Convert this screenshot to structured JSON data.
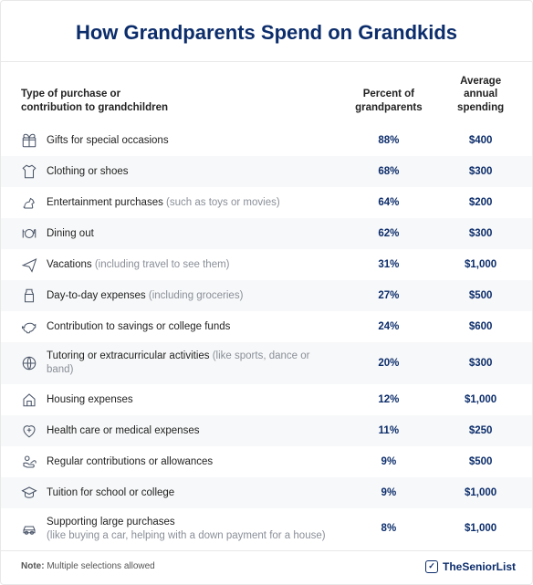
{
  "title": "How Grandparents Spend on Grandkids",
  "columns": {
    "label": "Type of purchase or\ncontribution to grandchildren",
    "pct": "Percent of\ngrandparents",
    "amt": "Average annual\nspending"
  },
  "rows": [
    {
      "icon": "gift",
      "label": "Gifts for special occasions",
      "sub": "",
      "pct": "88%",
      "amt": "$400"
    },
    {
      "icon": "shirt",
      "label": "Clothing or shoes",
      "sub": "",
      "pct": "68%",
      "amt": "$300"
    },
    {
      "icon": "horse",
      "label": "Entertainment purchases",
      "sub": " (such as toys or movies)",
      "pct": "64%",
      "amt": "$200"
    },
    {
      "icon": "dining",
      "label": "Dining out",
      "sub": "",
      "pct": "62%",
      "amt": "$300"
    },
    {
      "icon": "plane",
      "label": "Vacations",
      "sub": " (including travel to see them)",
      "pct": "31%",
      "amt": "$1,000"
    },
    {
      "icon": "milk",
      "label": "Day-to-day expenses",
      "sub": " (including groceries)",
      "pct": "27%",
      "amt": "$500"
    },
    {
      "icon": "piggy",
      "label": "Contribution to savings or college funds",
      "sub": "",
      "pct": "24%",
      "amt": "$600"
    },
    {
      "icon": "ball",
      "label": "Tutoring or extracurricular activities",
      "sub": " (like sports, dance or band)",
      "pct": "20%",
      "amt": "$300"
    },
    {
      "icon": "house",
      "label": "Housing expenses",
      "sub": "",
      "pct": "12%",
      "amt": "$1,000"
    },
    {
      "icon": "health",
      "label": "Health care or medical expenses",
      "sub": "",
      "pct": "11%",
      "amt": "$250"
    },
    {
      "icon": "hand",
      "label": "Regular contributions or allowances",
      "sub": "",
      "pct": "9%",
      "amt": "$500"
    },
    {
      "icon": "cap",
      "label": "Tuition for school or college",
      "sub": "",
      "pct": "9%",
      "amt": "$1,000"
    },
    {
      "icon": "car",
      "label": "Supporting large purchases",
      "sub": "\n(like buying a car, helping with a down payment for a house)",
      "pct": "8%",
      "amt": "$1,000"
    }
  ],
  "note_bold": "Note:",
  "note_text": " Multiple selections allowed",
  "brand": "TheSeniorList",
  "colors": {
    "accent": "#0c2d6b",
    "row_alt": "#f7f8f9",
    "border": "#e8e8e8",
    "sub": "#8a8f98"
  }
}
